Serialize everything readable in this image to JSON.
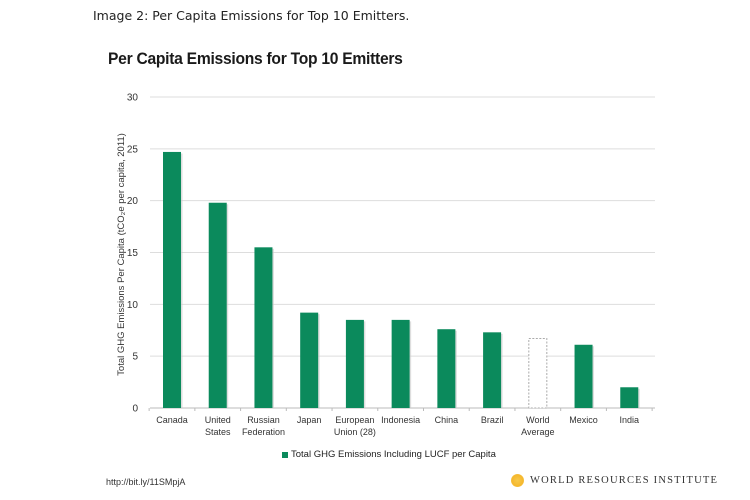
{
  "caption": "Image 2: Per Capita Emissions for Top 10 Emitters.",
  "source_url": "http://bit.ly/11SMpjA",
  "publisher": "WORLD RESOURCES INSTITUTE",
  "colors": {
    "bar": "#0b8a5c",
    "highlight_outline": "#aaaaaa",
    "grid": "#dddddd"
  },
  "chart_data": {
    "type": "bar",
    "title": "Per Capita Emissions for Top 10 Emitters",
    "xlabel": "",
    "ylabel": "Total GHG Emissions Per Capita (tCO₂e per capita, 2011)",
    "ylim": [
      0,
      30
    ],
    "yticks": [
      0,
      5,
      10,
      15,
      20,
      25,
      30
    ],
    "grid": true,
    "legend_position": "bottom",
    "categories": [
      [
        "Canada"
      ],
      [
        "United",
        "States"
      ],
      [
        "Russian",
        "Federation"
      ],
      [
        "Japan"
      ],
      [
        "European",
        "Union (28)"
      ],
      [
        "Indonesia"
      ],
      [
        "China"
      ],
      [
        "Brazil"
      ],
      [
        "World",
        "Average"
      ],
      [
        "Mexico"
      ],
      [
        "India"
      ]
    ],
    "series": [
      {
        "name": "Total GHG Emissions Including LUCF per Capita",
        "values": [
          24.7,
          19.8,
          15.5,
          9.2,
          8.5,
          8.5,
          7.6,
          7.3,
          6.7,
          6.1,
          2.0
        ],
        "outlined": [
          false,
          false,
          false,
          false,
          false,
          false,
          false,
          false,
          true,
          false,
          false
        ]
      }
    ]
  }
}
